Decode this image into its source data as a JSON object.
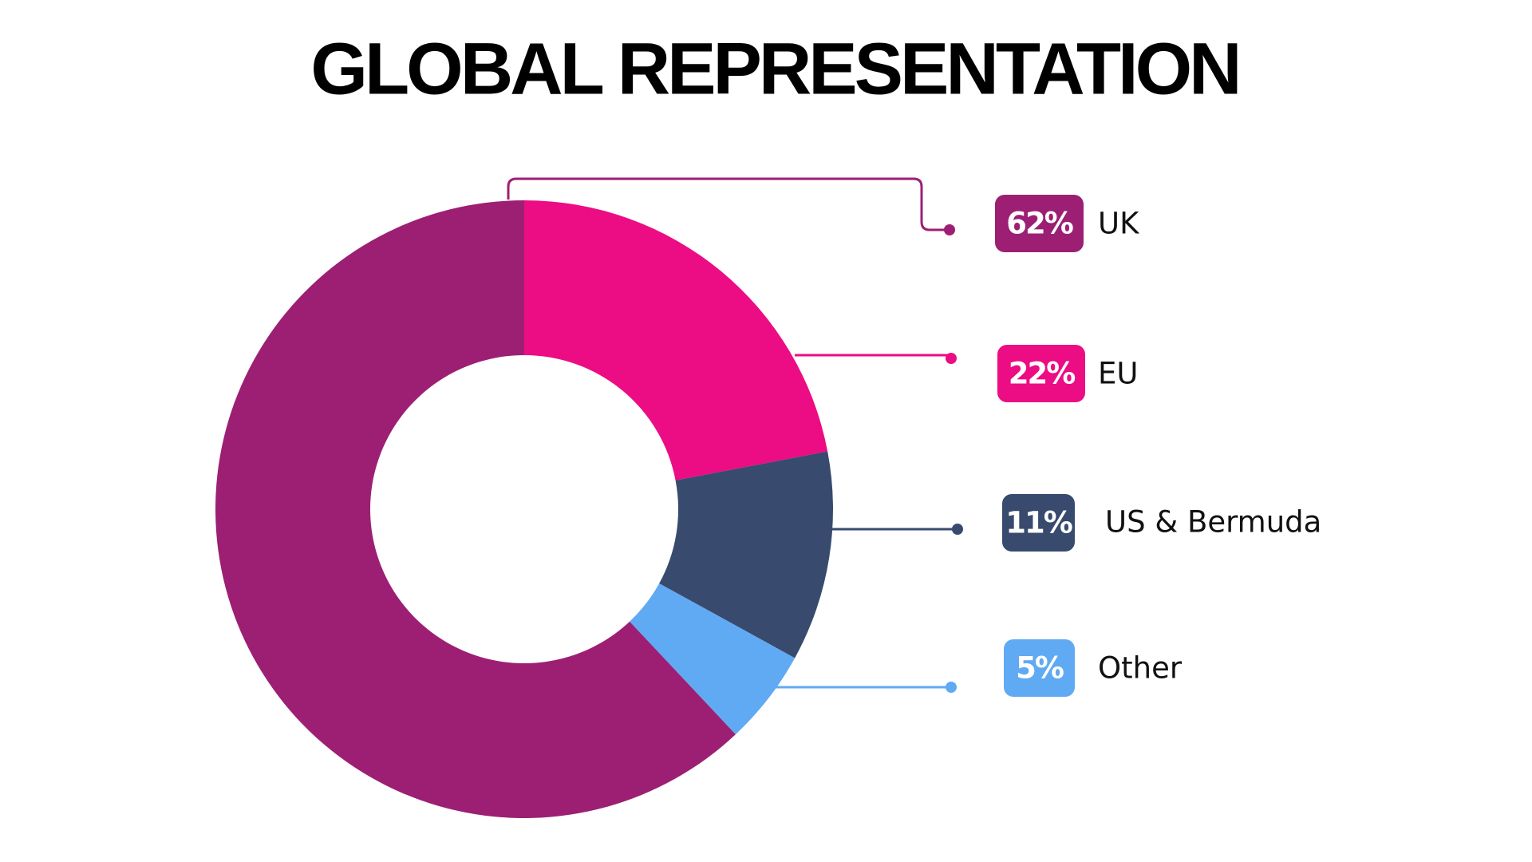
{
  "chart_data": {
    "type": "donut",
    "title": "GLOBAL REPRESENTATION",
    "categories": [
      "UK",
      "EU",
      "US & Bermuda",
      "Other"
    ],
    "values": [
      62,
      22,
      11,
      5
    ],
    "value_labels": [
      "62%",
      "22%",
      "11%",
      "5%"
    ],
    "colors": [
      "#9c1f74",
      "#ec0c84",
      "#384a6e",
      "#60aaf4"
    ]
  }
}
